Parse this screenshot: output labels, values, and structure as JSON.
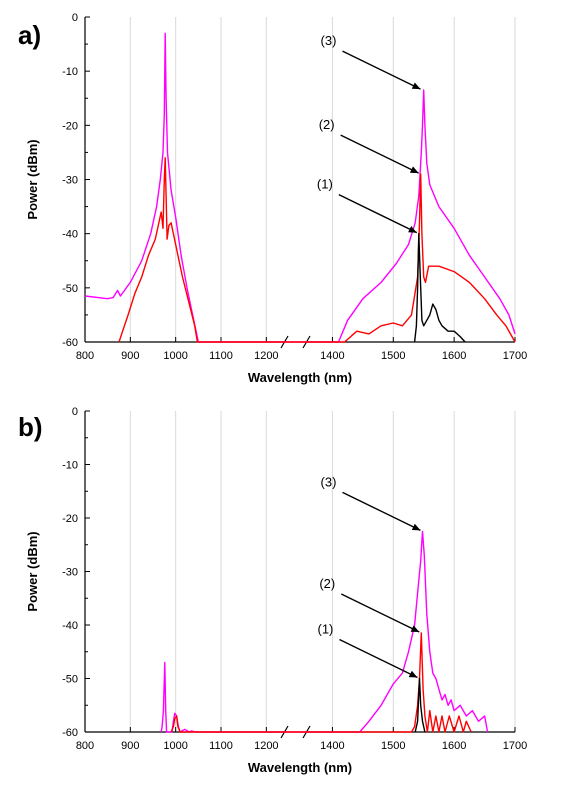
{
  "chart_data": [
    {
      "type": "line",
      "panel_label": "a)",
      "xlabel": "Wavelength (nm)",
      "ylabel": "Power (dBm)",
      "xlim": [
        800,
        1700
      ],
      "ylim": [
        -60,
        0
      ],
      "axis_break_between": [
        1250,
        1350
      ],
      "x_ticks": [
        "800",
        "900",
        "1000",
        "1100",
        "1200",
        "1400",
        "1500",
        "1600",
        "1700"
      ],
      "y_ticks": [
        "0",
        "-10",
        "-20",
        "-30",
        "-40",
        "-50",
        "-60"
      ],
      "grid": "vertical",
      "annotations": [
        {
          "text": "(3)",
          "target_x": 1548,
          "target_y": -13.5
        },
        {
          "text": "(2)",
          "target_x": 1545,
          "target_y": -29
        },
        {
          "text": "(1)",
          "target_x": 1542,
          "target_y": -40
        }
      ],
      "series": [
        {
          "color": "#ff00ff",
          "points": [
            [
              800,
              -51.5
            ],
            [
              850,
              -52
            ],
            [
              862,
              -51.8
            ],
            [
              872,
              -50.5
            ],
            [
              878,
              -51.5
            ],
            [
              900,
              -49
            ],
            [
              925,
              -45
            ],
            [
              945,
              -40
            ],
            [
              958,
              -35
            ],
            [
              966,
              -30
            ],
            [
              972,
              -25
            ],
            [
              975,
              -18
            ],
            [
              977,
              -3
            ],
            [
              979,
              -15
            ],
            [
              982,
              -25
            ],
            [
              990,
              -32
            ],
            [
              1000,
              -37
            ],
            [
              1012,
              -44
            ],
            [
              1025,
              -50
            ],
            [
              1035,
              -54
            ],
            [
              1045,
              -58
            ],
            [
              1050,
              -60
            ],
            [
              1410,
              -60
            ],
            [
              1425,
              -56
            ],
            [
              1450,
              -52
            ],
            [
              1480,
              -49
            ],
            [
              1505,
              -45.5
            ],
            [
              1525,
              -42
            ],
            [
              1536,
              -38
            ],
            [
              1542,
              -33
            ],
            [
              1546,
              -25
            ],
            [
              1548,
              -20
            ],
            [
              1550,
              -13.5
            ],
            [
              1552,
              -20
            ],
            [
              1555,
              -27
            ],
            [
              1560,
              -31
            ],
            [
              1575,
              -35
            ],
            [
              1600,
              -39
            ],
            [
              1625,
              -44
            ],
            [
              1650,
              -48
            ],
            [
              1675,
              -52
            ],
            [
              1690,
              -55
            ],
            [
              1700,
              -58.5
            ]
          ]
        },
        {
          "color": "#ff0000",
          "points": [
            [
              875,
              -60
            ],
            [
              883,
              -58
            ],
            [
              895,
              -55
            ],
            [
              910,
              -51
            ],
            [
              925,
              -48
            ],
            [
              940,
              -44
            ],
            [
              955,
              -41
            ],
            [
              968,
              -36
            ],
            [
              972,
              -39
            ],
            [
              975,
              -30
            ],
            [
              977,
              -26
            ],
            [
              979,
              -33
            ],
            [
              981,
              -41
            ],
            [
              985,
              -38.5
            ],
            [
              990,
              -38
            ],
            [
              995,
              -40
            ],
            [
              1005,
              -44
            ],
            [
              1015,
              -48
            ],
            [
              1030,
              -53
            ],
            [
              1042,
              -57
            ],
            [
              1048,
              -60
            ],
            [
              1420,
              -60
            ],
            [
              1440,
              -58
            ],
            [
              1460,
              -58.5
            ],
            [
              1480,
              -57
            ],
            [
              1500,
              -56.5
            ],
            [
              1515,
              -57
            ],
            [
              1530,
              -55
            ],
            [
              1540,
              -48
            ],
            [
              1543,
              -38
            ],
            [
              1545,
              -29
            ],
            [
              1547,
              -40
            ],
            [
              1550,
              -48
            ],
            [
              1553,
              -49
            ],
            [
              1558,
              -46
            ],
            [
              1575,
              -46
            ],
            [
              1600,
              -47
            ],
            [
              1625,
              -49
            ],
            [
              1650,
              -52
            ],
            [
              1670,
              -55
            ],
            [
              1685,
              -57
            ],
            [
              1695,
              -59
            ],
            [
              1700,
              -60
            ]
          ]
        },
        {
          "color": "#000000",
          "points": [
            [
              1535,
              -60
            ],
            [
              1538,
              -57
            ],
            [
              1540,
              -50
            ],
            [
              1542,
              -40
            ],
            [
              1544,
              -47
            ],
            [
              1547,
              -56
            ],
            [
              1550,
              -57
            ],
            [
              1555,
              -56
            ],
            [
              1560,
              -55
            ],
            [
              1565,
              -53
            ],
            [
              1570,
              -54
            ],
            [
              1575,
              -56
            ],
            [
              1580,
              -57
            ],
            [
              1590,
              -58
            ],
            [
              1600,
              -58
            ],
            [
              1610,
              -59
            ],
            [
              1618,
              -60
            ]
          ]
        }
      ]
    },
    {
      "type": "line",
      "panel_label": "b)",
      "xlabel": "Wavelength (nm)",
      "ylabel": "Power (dBm)",
      "xlim": [
        800,
        1700
      ],
      "ylim": [
        -60,
        0
      ],
      "axis_break_between": [
        1250,
        1350
      ],
      "x_ticks": [
        "800",
        "900",
        "1000",
        "1100",
        "1200",
        "1400",
        "1500",
        "1600",
        "1700"
      ],
      "y_ticks": [
        "0",
        "-10",
        "-20",
        "-30",
        "-40",
        "-50",
        "-60"
      ],
      "grid": "vertical",
      "annotations": [
        {
          "text": "(3)",
          "target_x": 1548,
          "target_y": -22.5
        },
        {
          "text": "(2)",
          "target_x": 1546,
          "target_y": -41.5
        },
        {
          "text": "(1)",
          "target_x": 1543,
          "target_y": -50
        }
      ],
      "series": [
        {
          "color": "#ff00ff",
          "points": [
            [
              968,
              -60
            ],
            [
              970,
              -59
            ],
            [
              973,
              -56
            ],
            [
              976,
              -47
            ],
            [
              978,
              -56
            ],
            [
              980,
              -60
            ],
            [
              992,
              -60
            ],
            [
              995,
              -58
            ],
            [
              998,
              -56.5
            ],
            [
              1002,
              -57
            ],
            [
              1006,
              -59
            ],
            [
              1010,
              -60
            ],
            [
              1020,
              -59.5
            ],
            [
              1030,
              -60
            ],
            [
              1035,
              -59.8
            ],
            [
              1045,
              -60
            ],
            [
              1445,
              -60
            ],
            [
              1460,
              -58
            ],
            [
              1480,
              -55
            ],
            [
              1500,
              -51
            ],
            [
              1515,
              -49
            ],
            [
              1525,
              -45
            ],
            [
              1535,
              -40
            ],
            [
              1540,
              -34
            ],
            [
              1545,
              -28
            ],
            [
              1548,
              -22.5
            ],
            [
              1551,
              -27
            ],
            [
              1555,
              -38
            ],
            [
              1560,
              -45
            ],
            [
              1565,
              -49
            ],
            [
              1570,
              -50
            ],
            [
              1575,
              -52
            ],
            [
              1580,
              -54
            ],
            [
              1585,
              -53
            ],
            [
              1590,
              -55
            ],
            [
              1595,
              -54
            ],
            [
              1600,
              -56
            ],
            [
              1610,
              -55
            ],
            [
              1620,
              -57
            ],
            [
              1630,
              -56
            ],
            [
              1640,
              -58
            ],
            [
              1650,
              -57
            ],
            [
              1655,
              -60
            ]
          ]
        },
        {
          "color": "#ff0000",
          "points": [
            [
              990,
              -60
            ],
            [
              995,
              -59
            ],
            [
              998,
              -57.5
            ],
            [
              1002,
              -57
            ],
            [
              1005,
              -59
            ],
            [
              1010,
              -60
            ],
            [
              1530,
              -60
            ],
            [
              1535,
              -59
            ],
            [
              1540,
              -55
            ],
            [
              1543,
              -50
            ],
            [
              1546,
              -41.5
            ],
            [
              1549,
              -52
            ],
            [
              1552,
              -57
            ],
            [
              1556,
              -60
            ],
            [
              1560,
              -56
            ],
            [
              1565,
              -60
            ],
            [
              1570,
              -57
            ],
            [
              1575,
              -60
            ],
            [
              1580,
              -57
            ],
            [
              1585,
              -60
            ],
            [
              1592,
              -57
            ],
            [
              1600,
              -60
            ],
            [
              1608,
              -57
            ],
            [
              1615,
              -60
            ],
            [
              1620,
              -58
            ],
            [
              1628,
              -60
            ]
          ]
        },
        {
          "color": "#000000",
          "points": [
            [
              1536,
              -60
            ],
            [
              1540,
              -58
            ],
            [
              1543,
              -50
            ],
            [
              1545,
              -55
            ],
            [
              1548,
              -58
            ],
            [
              1552,
              -60
            ]
          ]
        }
      ]
    }
  ]
}
